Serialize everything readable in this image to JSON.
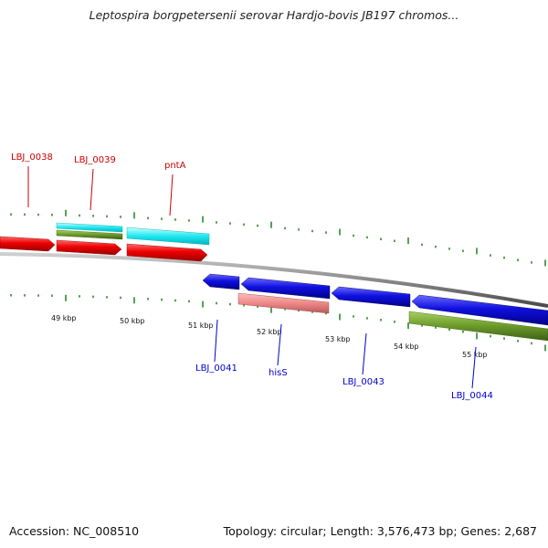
{
  "title": "Leptospira borgpetersenii serovar Hardjo-bovis JB197 chromos...",
  "colors": {
    "forward_gene": "#ee0000",
    "reverse_gene": "#1010e0",
    "cyan_feature": "#20e8f0",
    "pink_feature": "#ee8888",
    "olive_feature": "#6a9a2a",
    "backbone": "#8a8a8a",
    "tick": "#2a8a2a",
    "forward_label": "#cc0000",
    "reverse_label": "#0000cc"
  },
  "scale_labels": [
    "49 kbp",
    "50 kbp",
    "51 kbp",
    "52 kbp",
    "53 kbp",
    "54 kbp",
    "55 kbp"
  ],
  "forward_labels": [
    "LBJ_0038",
    "LBJ_0039",
    "pntA"
  ],
  "reverse_labels": [
    "LBJ_0041",
    "hisS",
    "LBJ_0043",
    "LBJ_0044"
  ],
  "footer": {
    "accession": "Accession: NC_008510",
    "stats": "Topology: circular; Length: 3,576,473 bp; Genes: 2,687"
  }
}
